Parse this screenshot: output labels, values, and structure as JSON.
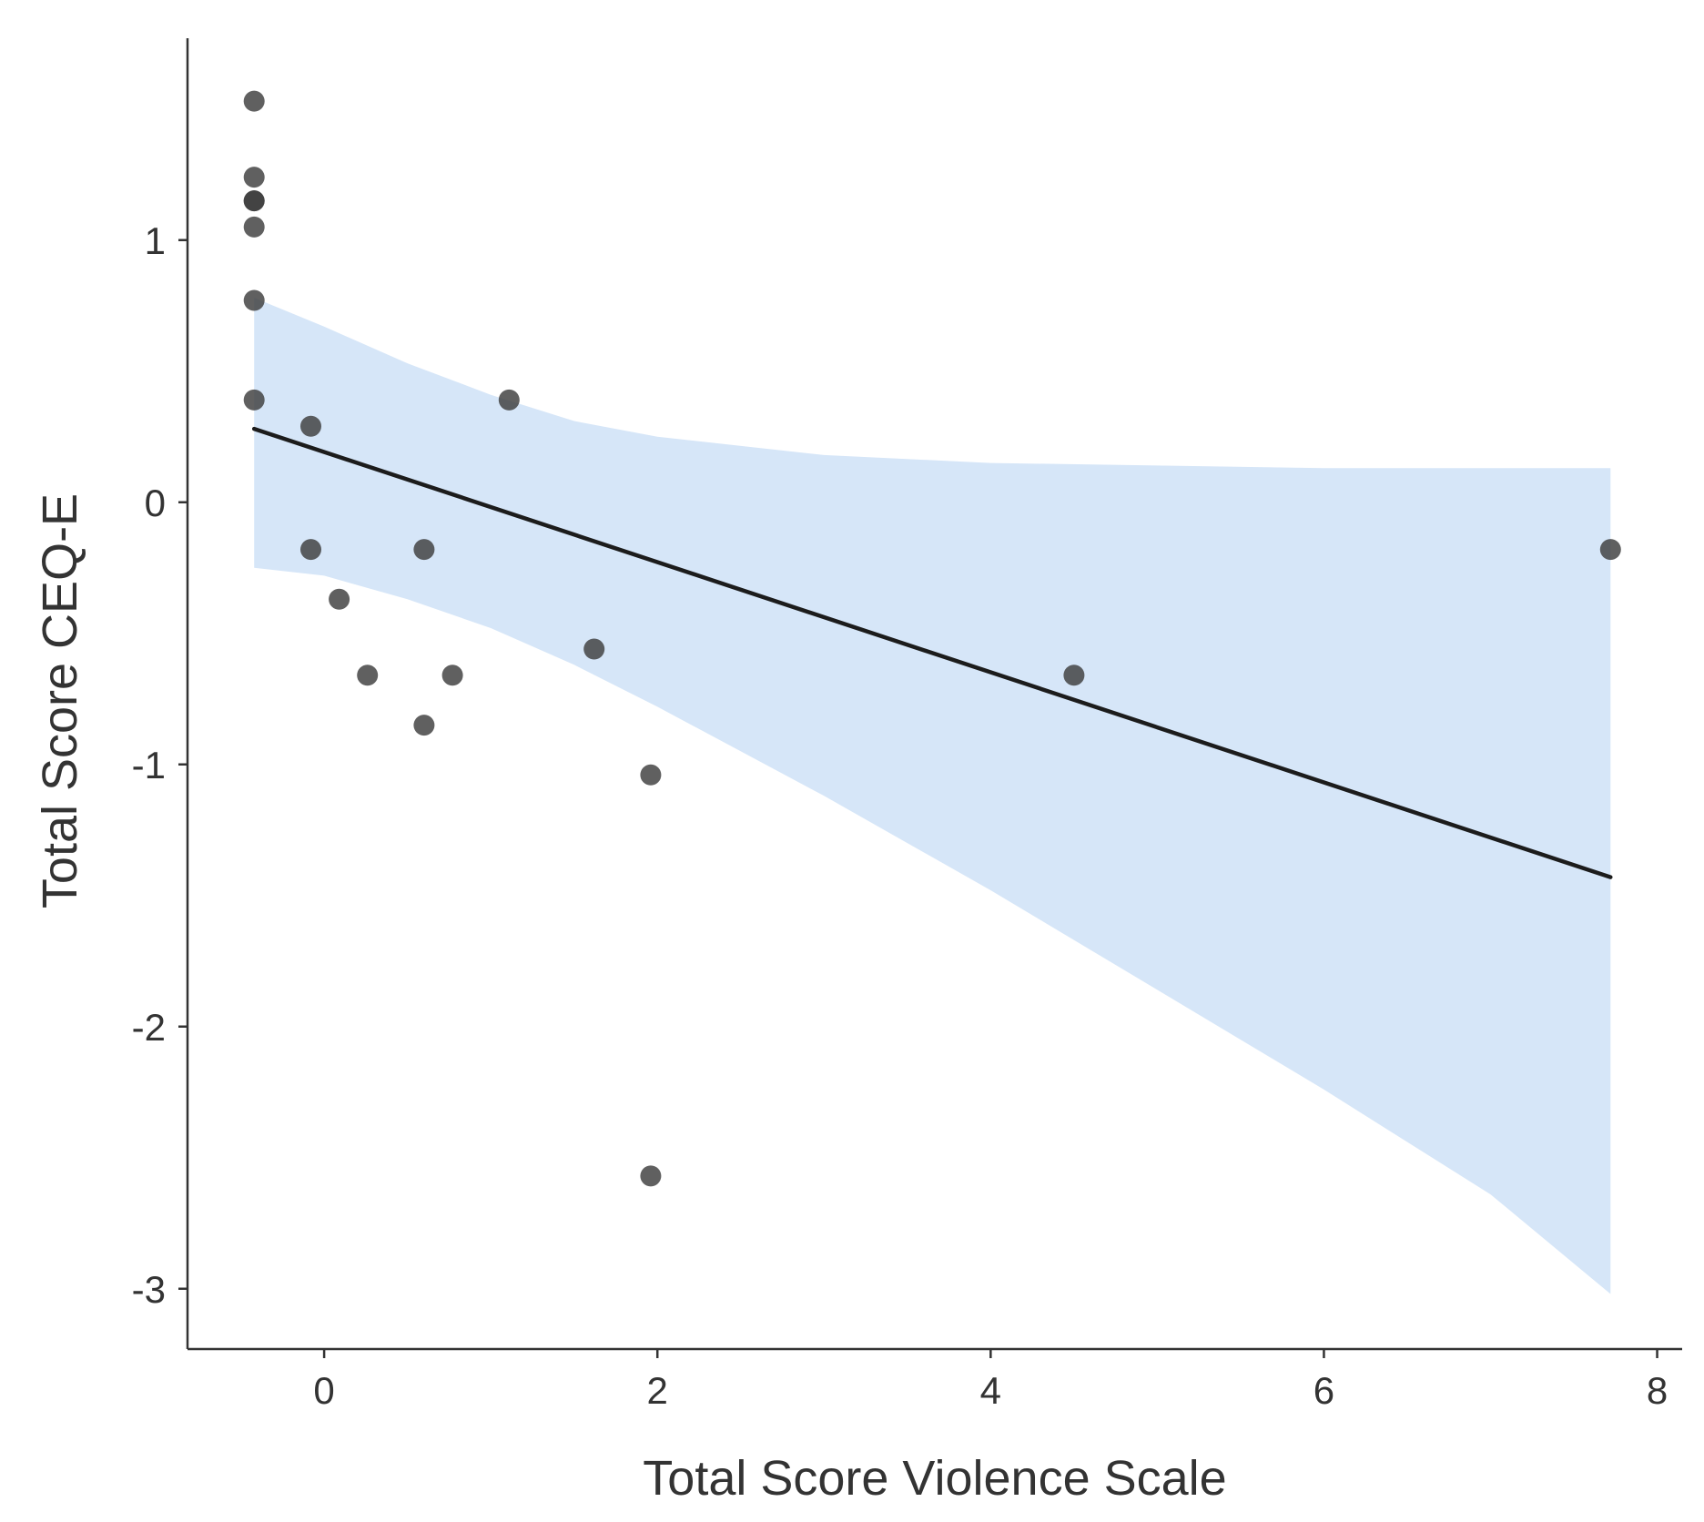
{
  "chart_data": {
    "type": "scatter",
    "xlabel": "Total Score Violence Scale",
    "ylabel": "Total Score CEQ-E",
    "xlim": [
      -0.82,
      8.15
    ],
    "ylim": [
      -3.23,
      1.77
    ],
    "x_ticks": [
      0,
      2,
      4,
      6,
      8
    ],
    "y_ticks": [
      1,
      0,
      -1,
      -2,
      -3
    ],
    "x_tick_labels": [
      "0",
      "2",
      "4",
      "6",
      "8"
    ],
    "y_tick_labels": [
      "1",
      "0",
      "-1",
      "-2",
      "-3"
    ],
    "grid": false,
    "legend": "none",
    "points": [
      {
        "x": -0.42,
        "y": 1.53
      },
      {
        "x": -0.42,
        "y": 1.24
      },
      {
        "x": -0.42,
        "y": 1.15
      },
      {
        "x": -0.42,
        "y": 1.15
      },
      {
        "x": -0.42,
        "y": 1.05
      },
      {
        "x": -0.42,
        "y": 0.77
      },
      {
        "x": -0.42,
        "y": 0.39
      },
      {
        "x": -0.08,
        "y": 0.29
      },
      {
        "x": -0.08,
        "y": -0.18
      },
      {
        "x": 0.09,
        "y": -0.37
      },
      {
        "x": 0.26,
        "y": -0.66
      },
      {
        "x": 0.6,
        "y": -0.18
      },
      {
        "x": 0.6,
        "y": -0.85
      },
      {
        "x": 0.77,
        "y": -0.66
      },
      {
        "x": 1.11,
        "y": 0.39
      },
      {
        "x": 1.62,
        "y": -0.56
      },
      {
        "x": 1.96,
        "y": -1.04
      },
      {
        "x": 1.96,
        "y": -2.57
      },
      {
        "x": 4.5,
        "y": -0.66
      },
      {
        "x": 7.72,
        "y": -0.18
      }
    ],
    "regression": {
      "x": [
        -0.42,
        7.72
      ],
      "y": [
        0.28,
        -1.43
      ]
    },
    "confidence_band": {
      "x": [
        -0.42,
        0.0,
        0.5,
        1.0,
        1.5,
        2.0,
        3.0,
        4.0,
        5.0,
        6.0,
        7.0,
        7.72
      ],
      "upper": [
        0.78,
        0.67,
        0.53,
        0.41,
        0.31,
        0.25,
        0.18,
        0.15,
        0.14,
        0.13,
        0.13,
        0.13
      ],
      "lower": [
        -0.25,
        -0.28,
        -0.37,
        -0.48,
        -0.62,
        -0.78,
        -1.12,
        -1.48,
        -1.86,
        -2.24,
        -2.64,
        -3.02
      ]
    },
    "colors": {
      "points": "#3d3d3d",
      "band": "#d6e6f8",
      "line": "#1c1c1c",
      "axis": "#333333"
    }
  }
}
